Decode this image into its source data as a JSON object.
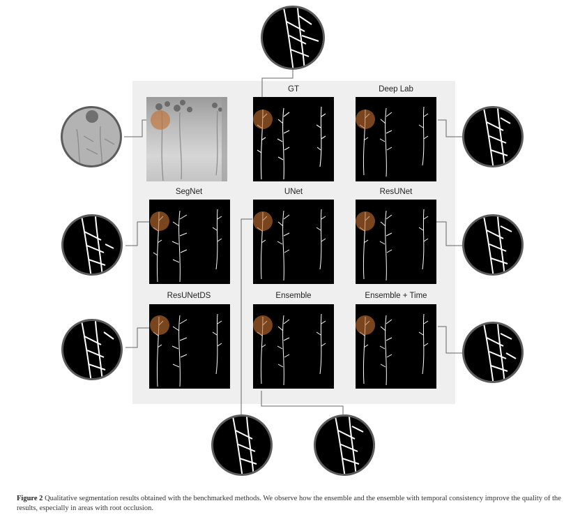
{
  "figure": {
    "panels": [
      {
        "key": "input",
        "label": ""
      },
      {
        "key": "gt",
        "label": "GT"
      },
      {
        "key": "deeplab",
        "label": "Deep Lab"
      },
      {
        "key": "segnet",
        "label": "SegNet"
      },
      {
        "key": "unet",
        "label": "UNet"
      },
      {
        "key": "resunet",
        "label": "ResUNet"
      },
      {
        "key": "resunetds",
        "label": "ResUNetDS"
      },
      {
        "key": "ensemble",
        "label": "Ensemble"
      },
      {
        "key": "ensemble_time",
        "label": "Ensemble + Time"
      }
    ],
    "colors": {
      "background_panel": "#efefef",
      "occlusion_marker": "#c47032",
      "zoom_border": "#5c5c5c",
      "root": "#ffffff"
    }
  },
  "caption": {
    "figure_label": "Figure 2",
    "text": "Qualitative segmentation results obtained with the benchmarked methods. We observe how the ensemble and the ensemble with temporal consistency improve the quality of the results, especially in areas with root occlusion."
  }
}
